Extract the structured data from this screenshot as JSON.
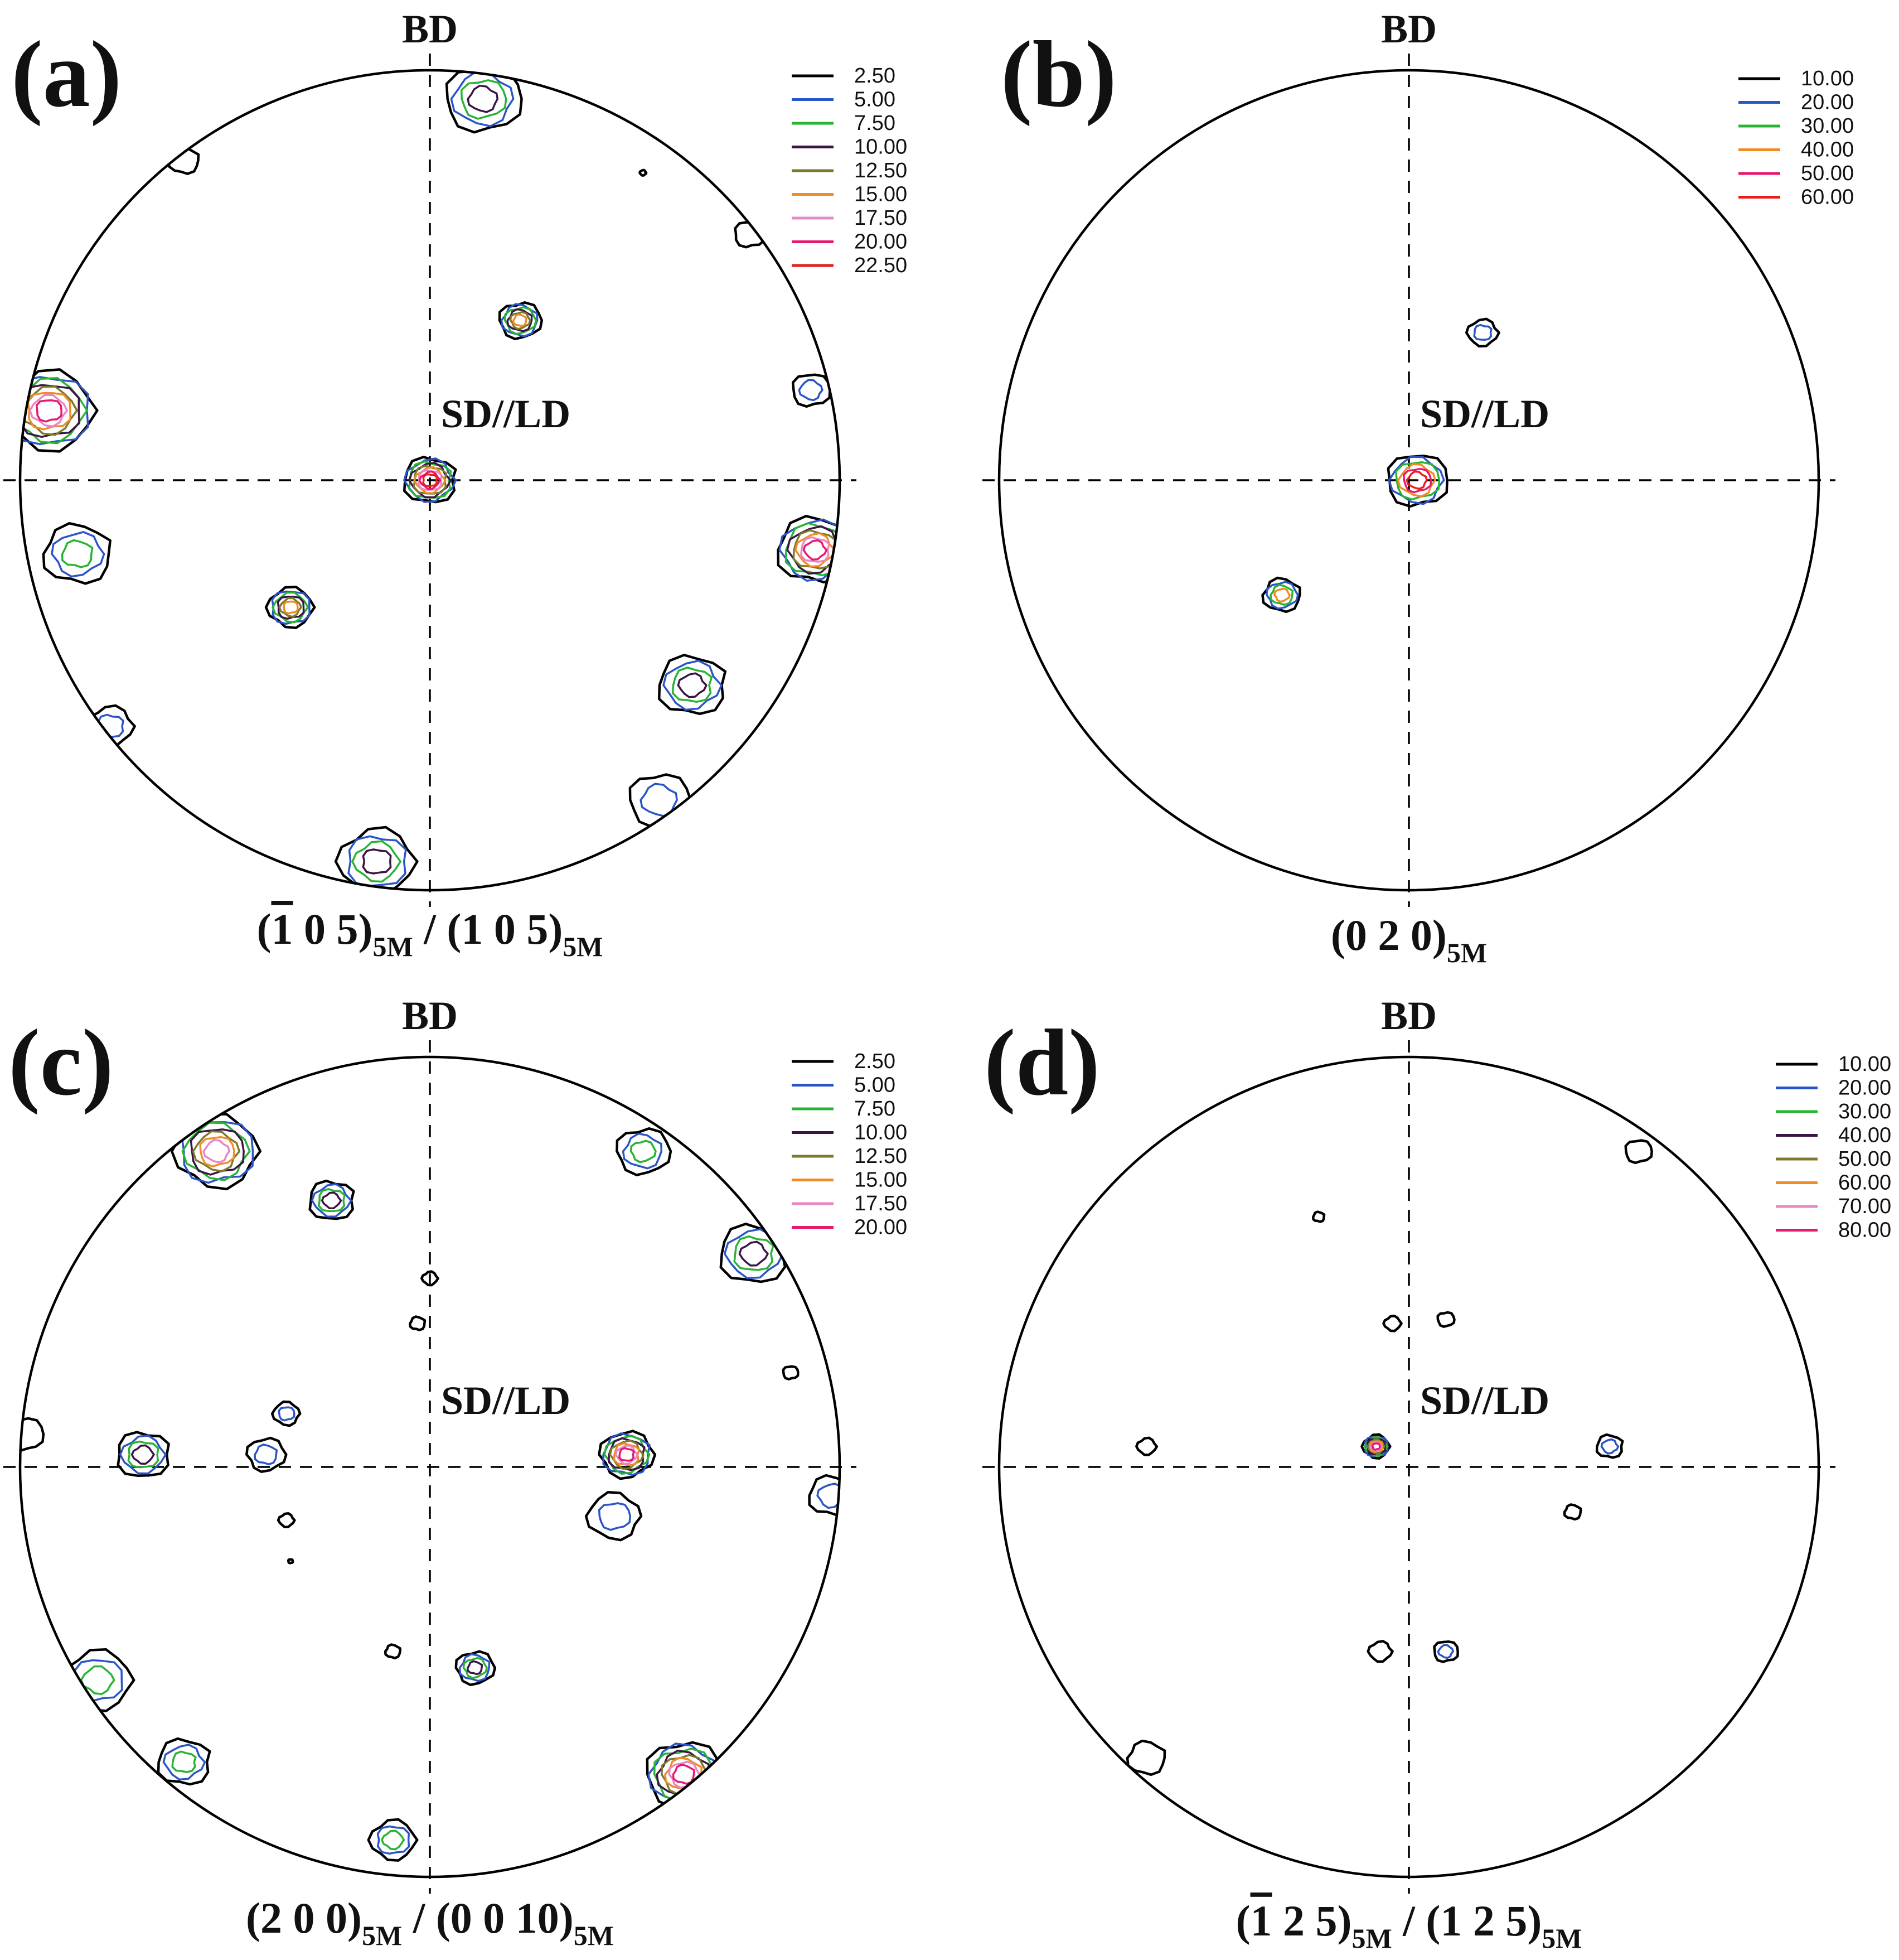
{
  "colors": {
    "black": "#000000",
    "blue": "#2a55c8",
    "green": "#28b432",
    "purple": "#3a1446",
    "olive": "#7a7a28",
    "orange": "#f08c28",
    "pink": "#e887c8",
    "magenta": "#e6196e",
    "red": "#e61e1e"
  },
  "chart_data": [
    {
      "type": "pole-figure",
      "panel_label": "(a)",
      "axis_top": "BD",
      "axis_center": "SD//LD",
      "caption": {
        "p1": "(",
        "bar1": "1",
        "p2": " 0 5)",
        "sub1": "5M",
        "p3": " / (1 0 5)",
        "sub2": "5M"
      },
      "legend": [
        {
          "label": "2.50",
          "color": "#000000"
        },
        {
          "label": "5.00",
          "color": "#2a55c8"
        },
        {
          "label": "7.50",
          "color": "#28b432"
        },
        {
          "label": "10.00",
          "color": "#3a1446"
        },
        {
          "label": "12.50",
          "color": "#7a7a28"
        },
        {
          "label": "15.00",
          "color": "#f08c28"
        },
        {
          "label": "17.50",
          "color": "#e887c8"
        },
        {
          "label": "20.00",
          "color": "#e6196e"
        },
        {
          "label": "22.50",
          "color": "#e61e1e"
        }
      ],
      "poles": [
        {
          "x": 0.0,
          "y": 0.0,
          "levels": 9,
          "size": 0.07
        },
        {
          "x": 0.22,
          "y": 0.39,
          "levels": 6,
          "size": 0.055
        },
        {
          "x": -0.34,
          "y": -0.31,
          "levels": 6,
          "size": 0.06
        },
        {
          "x": 0.64,
          "y": -0.5,
          "levels": 4,
          "size": 0.09
        },
        {
          "x": 0.56,
          "y": -0.78,
          "levels": 2,
          "size": 0.08
        },
        {
          "x": -0.93,
          "y": 0.17,
          "levels": 8,
          "size": 0.12
        },
        {
          "x": 0.94,
          "y": -0.17,
          "levels": 8,
          "size": 0.1
        },
        {
          "x": 0.13,
          "y": 0.93,
          "levels": 4,
          "size": 0.1
        },
        {
          "x": -0.13,
          "y": -0.93,
          "levels": 4,
          "size": 0.1
        },
        {
          "x": -0.86,
          "y": -0.18,
          "levels": 3,
          "size": 0.09
        },
        {
          "x": 0.93,
          "y": 0.22,
          "levels": 2,
          "size": 0.05
        },
        {
          "x": -0.78,
          "y": -0.6,
          "levels": 2,
          "size": 0.06
        },
        {
          "x": -0.6,
          "y": 0.78,
          "levels": 1,
          "size": 0.04
        },
        {
          "x": 0.78,
          "y": 0.6,
          "levels": 1,
          "size": 0.04
        },
        {
          "x": 0.52,
          "y": 0.75,
          "levels": 1,
          "size": 0.008
        }
      ]
    },
    {
      "type": "pole-figure",
      "panel_label": "(b)",
      "axis_top": "BD",
      "axis_center": "SD//LD",
      "caption": {
        "p1": "(0 2 0)",
        "sub1": "5M"
      },
      "legend": [
        {
          "label": "10.00",
          "color": "#000000"
        },
        {
          "label": "20.00",
          "color": "#2a55c8"
        },
        {
          "label": "30.00",
          "color": "#28b432"
        },
        {
          "label": "40.00",
          "color": "#f08c28"
        },
        {
          "label": "50.00",
          "color": "#e6196e"
        },
        {
          "label": "60.00",
          "color": "#e61e1e"
        }
      ],
      "poles": [
        {
          "x": 0.02,
          "y": 0.0,
          "levels": 6,
          "size": 0.08
        },
        {
          "x": 0.18,
          "y": 0.36,
          "levels": 2,
          "size": 0.04
        },
        {
          "x": -0.31,
          "y": -0.28,
          "levels": 4,
          "size": 0.05
        }
      ]
    },
    {
      "type": "pole-figure",
      "panel_label": "(c)",
      "axis_top": "BD",
      "axis_center": "SD//LD",
      "caption": {
        "p1": "(2 0 0)",
        "sub1": "5M",
        "p2": " / (0 0 10)",
        "sub2": "5M"
      },
      "legend": [
        {
          "label": "2.50",
          "color": "#000000"
        },
        {
          "label": "5.00",
          "color": "#2a55c8"
        },
        {
          "label": "7.50",
          "color": "#28b432"
        },
        {
          "label": "10.00",
          "color": "#3a1446"
        },
        {
          "label": "12.50",
          "color": "#7a7a28"
        },
        {
          "label": "15.00",
          "color": "#f08c28"
        },
        {
          "label": "17.50",
          "color": "#e887c8"
        },
        {
          "label": "20.00",
          "color": "#e6196e"
        }
      ],
      "poles": [
        {
          "x": 0.48,
          "y": 0.03,
          "levels": 8,
          "size": 0.07
        },
        {
          "x": 0.45,
          "y": -0.12,
          "levels": 2,
          "size": 0.07
        },
        {
          "x": -0.7,
          "y": 0.03,
          "levels": 4,
          "size": 0.07
        },
        {
          "x": -0.4,
          "y": 0.03,
          "levels": 2,
          "size": 0.05
        },
        {
          "x": -0.35,
          "y": 0.13,
          "levels": 2,
          "size": 0.035
        },
        {
          "x": -0.24,
          "y": 0.65,
          "levels": 4,
          "size": 0.06
        },
        {
          "x": 0.11,
          "y": -0.49,
          "levels": 4,
          "size": 0.05
        },
        {
          "x": -0.52,
          "y": 0.77,
          "levels": 7,
          "size": 0.11
        },
        {
          "x": 0.79,
          "y": 0.52,
          "levels": 4,
          "size": 0.09
        },
        {
          "x": 0.52,
          "y": 0.77,
          "levels": 3,
          "size": 0.07
        },
        {
          "x": -0.81,
          "y": -0.52,
          "levels": 3,
          "size": 0.09
        },
        {
          "x": -0.6,
          "y": -0.72,
          "levels": 3,
          "size": 0.07
        },
        {
          "x": 0.62,
          "y": -0.75,
          "levels": 8,
          "size": 0.1
        },
        {
          "x": -0.09,
          "y": -0.91,
          "levels": 3,
          "size": 0.06
        },
        {
          "x": 0.98,
          "y": -0.07,
          "levels": 2,
          "size": 0.06
        },
        {
          "x": -0.99,
          "y": 0.08,
          "levels": 1,
          "size": 0.05
        },
        {
          "x": 0.0,
          "y": 0.46,
          "levels": 1,
          "size": 0.02
        },
        {
          "x": -0.03,
          "y": 0.35,
          "levels": 1,
          "size": 0.02
        },
        {
          "x": 0.88,
          "y": 0.23,
          "levels": 1,
          "size": 0.02
        },
        {
          "x": -0.35,
          "y": -0.13,
          "levels": 1,
          "size": 0.02
        },
        {
          "x": -0.09,
          "y": -0.45,
          "levels": 1,
          "size": 0.02
        },
        {
          "x": -0.34,
          "y": -0.23,
          "levels": 1,
          "size": 0.006
        }
      ]
    },
    {
      "type": "pole-figure",
      "panel_label": "(d)",
      "axis_top": "BD",
      "axis_center": "SD//LD",
      "caption": {
        "p1": "(",
        "bar1": "1",
        "p2": " 2 5)",
        "sub1": "5M",
        "p3": " / (1 2 5)",
        "sub2": "5M"
      },
      "legend": [
        {
          "label": "10.00",
          "color": "#000000"
        },
        {
          "label": "20.00",
          "color": "#2a55c8"
        },
        {
          "label": "30.00",
          "color": "#28b432"
        },
        {
          "label": "40.00",
          "color": "#3a1446"
        },
        {
          "label": "50.00",
          "color": "#7a7a28"
        },
        {
          "label": "60.00",
          "color": "#f08c28"
        },
        {
          "label": "70.00",
          "color": "#e887c8"
        },
        {
          "label": "80.00",
          "color": "#e6196e"
        }
      ],
      "poles": [
        {
          "x": -0.08,
          "y": 0.05,
          "levels": 8,
          "size": 0.035
        },
        {
          "x": 0.49,
          "y": 0.05,
          "levels": 2,
          "size": 0.035
        },
        {
          "x": 0.09,
          "y": 0.36,
          "levels": 1,
          "size": 0.022
        },
        {
          "x": -0.04,
          "y": 0.35,
          "levels": 1,
          "size": 0.022
        },
        {
          "x": -0.22,
          "y": 0.61,
          "levels": 1,
          "size": 0.015
        },
        {
          "x": 0.56,
          "y": 0.77,
          "levels": 1,
          "size": 0.035
        },
        {
          "x": -0.64,
          "y": 0.05,
          "levels": 1,
          "size": 0.025
        },
        {
          "x": 0.4,
          "y": -0.11,
          "levels": 1,
          "size": 0.022
        },
        {
          "x": 0.09,
          "y": -0.45,
          "levels": 2,
          "size": 0.032
        },
        {
          "x": -0.07,
          "y": -0.45,
          "levels": 1,
          "size": 0.03
        },
        {
          "x": -0.64,
          "y": -0.71,
          "levels": 1,
          "size": 0.05
        }
      ]
    }
  ]
}
